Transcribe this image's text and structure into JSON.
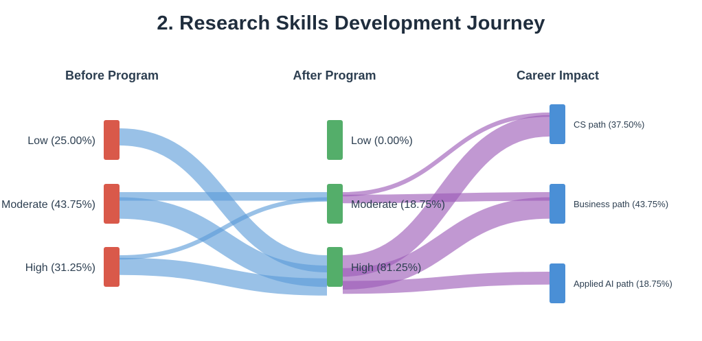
{
  "title": "2. Research Skills Development Journey",
  "columns": {
    "before": "Before Program",
    "after": "After Program",
    "career": "Career Impact"
  },
  "nodes": {
    "before": [
      {
        "id": "b_low",
        "label": "Low (25.00%)",
        "value": 25.0,
        "color": "#d9594a"
      },
      {
        "id": "b_mod",
        "label": "Moderate (43.75%)",
        "value": 43.75,
        "color": "#d9594a"
      },
      {
        "id": "b_high",
        "label": "High (31.25%)",
        "value": 31.25,
        "color": "#d9594a"
      }
    ],
    "after": [
      {
        "id": "a_low",
        "label": "Low (0.00%)",
        "value": 0.0,
        "color": "#54ae6a"
      },
      {
        "id": "a_mod",
        "label": "Moderate (18.75%)",
        "value": 18.75,
        "color": "#54ae6a"
      },
      {
        "id": "a_high",
        "label": "High (81.25%)",
        "value": 81.25,
        "color": "#54ae6a"
      }
    ],
    "career": [
      {
        "id": "c_cs",
        "label": "CS path (37.50%)",
        "value": 37.5,
        "color": "#4a8fd6"
      },
      {
        "id": "c_bus",
        "label": "Business path (43.75%)",
        "value": 43.75,
        "color": "#4a8fd6"
      },
      {
        "id": "c_ai",
        "label": "Applied AI path (18.75%)",
        "value": 18.75,
        "color": "#4a8fd6"
      }
    ]
  },
  "links": [
    {
      "from": "b_low",
      "to": "a_high",
      "value": 25.0,
      "color": "#5b9bd9"
    },
    {
      "from": "b_mod",
      "to": "a_mod",
      "value": 12.5,
      "color": "#5b9bd9"
    },
    {
      "from": "b_mod",
      "to": "a_high",
      "value": 31.25,
      "color": "#5b9bd9"
    },
    {
      "from": "b_high",
      "to": "a_mod",
      "value": 6.25,
      "color": "#5b9bd9"
    },
    {
      "from": "b_high",
      "to": "a_high",
      "value": 25.0,
      "color": "#5b9bd9"
    },
    {
      "from": "a_mod",
      "to": "c_cs",
      "value": 6.25,
      "color": "#9b59b6"
    },
    {
      "from": "a_mod",
      "to": "c_bus",
      "value": 12.5,
      "color": "#9b59b6"
    },
    {
      "from": "a_high",
      "to": "c_cs",
      "value": 31.25,
      "color": "#9b59b6"
    },
    {
      "from": "a_high",
      "to": "c_bus",
      "value": 31.25,
      "color": "#9b59b6"
    },
    {
      "from": "a_high",
      "to": "c_ai",
      "value": 18.75,
      "color": "#9b59b6"
    }
  ]
}
